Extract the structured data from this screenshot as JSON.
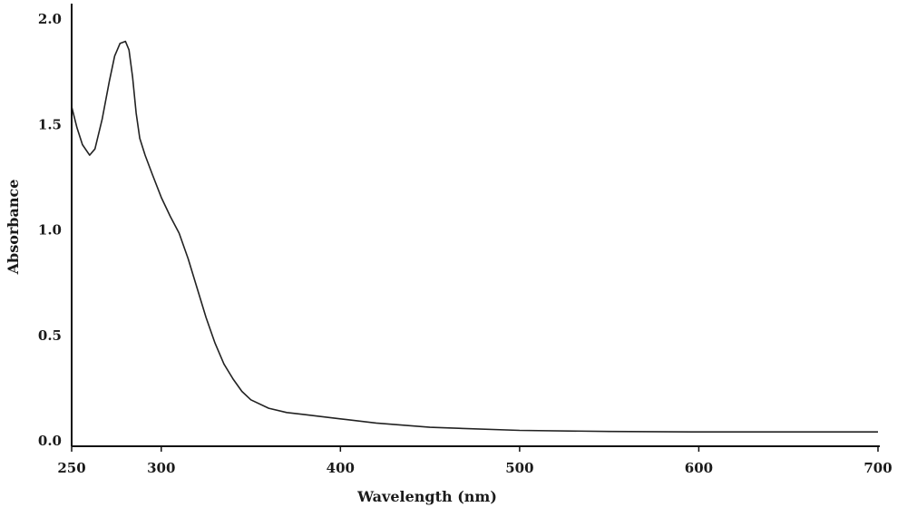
{
  "chart_data": {
    "type": "line",
    "title": "",
    "xlabel": "Wavelength (nm)",
    "ylabel": "Absorbance",
    "xlim": [
      250,
      700
    ],
    "ylim": [
      0,
      2.0
    ],
    "x_ticks": [
      250,
      300,
      400,
      500,
      600,
      700
    ],
    "x_tick_labels": [
      "250",
      "300",
      "400",
      "500",
      "600",
      "700"
    ],
    "y_ticks": [
      0,
      0.5,
      1.0,
      1.5,
      2.0
    ],
    "y_tick_labels": [
      "0.0",
      "0.5",
      "1.0",
      "1.5",
      "2.0"
    ],
    "grid": false,
    "series": [
      {
        "color": "#222222",
        "points": [
          [
            250,
            1.58
          ],
          [
            253,
            1.48
          ],
          [
            256,
            1.4
          ],
          [
            260,
            1.35
          ],
          [
            263,
            1.38
          ],
          [
            267,
            1.52
          ],
          [
            271,
            1.7
          ],
          [
            274,
            1.82
          ],
          [
            277,
            1.88
          ],
          [
            280,
            1.89
          ],
          [
            282,
            1.85
          ],
          [
            284,
            1.72
          ],
          [
            286,
            1.55
          ],
          [
            288,
            1.43
          ],
          [
            291,
            1.35
          ],
          [
            295,
            1.26
          ],
          [
            300,
            1.15
          ],
          [
            305,
            1.06
          ],
          [
            310,
            0.98
          ],
          [
            315,
            0.86
          ],
          [
            320,
            0.72
          ],
          [
            325,
            0.58
          ],
          [
            330,
            0.46
          ],
          [
            335,
            0.36
          ],
          [
            340,
            0.29
          ],
          [
            345,
            0.23
          ],
          [
            350,
            0.19
          ],
          [
            360,
            0.15
          ],
          [
            370,
            0.13
          ],
          [
            380,
            0.12
          ],
          [
            400,
            0.1
          ],
          [
            420,
            0.08
          ],
          [
            450,
            0.06
          ],
          [
            500,
            0.045
          ],
          [
            550,
            0.04
          ],
          [
            600,
            0.038
          ],
          [
            650,
            0.038
          ],
          [
            700,
            0.038
          ]
        ]
      }
    ]
  }
}
